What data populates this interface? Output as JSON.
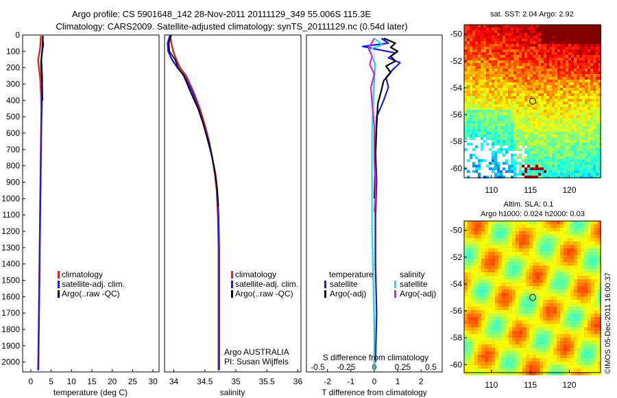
{
  "header": {
    "line1": "Argo profile: CS 5901648_142 28-Nov-2011 20111129_349 55.006S 115.3E",
    "line2": "Climatology: CARS2009. Satellite-adjusted climatology: synTS_20111129.nc (0.54d later)"
  },
  "colors": {
    "climatology": "#e02020",
    "satellite": "#1a1ae0",
    "argo": "#000000",
    "sal_satellite": "#22e0e0",
    "sal_argo": "#e020e0"
  },
  "chart_data": [
    {
      "type": "line",
      "xlabel": "temperature (deg C)",
      "xticks": [
        "0",
        "5",
        "10",
        "15",
        "20",
        "25",
        "30"
      ],
      "xlim": [
        -2,
        31.5
      ],
      "ylim": [
        2060,
        0
      ],
      "yticks": [
        "0",
        "100",
        "200",
        "300",
        "400",
        "500",
        "600",
        "700",
        "800",
        "900",
        "1000",
        "1100",
        "1200",
        "1300",
        "1400",
        "1500",
        "1600",
        "1700",
        "1800",
        "1900",
        "2000"
      ],
      "legend": {
        "entries": [
          "climatology",
          "satellite-adj. clim.",
          "Argo(..raw -QC)"
        ]
      },
      "series": [
        {
          "name": "climatology",
          "color_key": "climatology",
          "x": [
            2.5,
            2.4,
            2.2,
            1.8,
            2.0,
            2.3,
            2.5,
            2.6,
            2.55,
            2.5,
            2.45,
            2.4,
            2.35,
            2.3,
            2.25,
            2.2,
            2.15,
            2.1,
            2.05,
            2.0,
            1.95,
            1.9,
            1.85,
            1.8
          ],
          "y": [
            5,
            50,
            100,
            150,
            200,
            260,
            350,
            450,
            550,
            650,
            750,
            850,
            950,
            1050,
            1150,
            1250,
            1350,
            1450,
            1550,
            1650,
            1750,
            1850,
            1950,
            2050
          ]
        },
        {
          "name": "satellite-adj. clim.",
          "color_key": "satellite",
          "x": [
            3.0,
            2.9,
            2.8,
            2.6,
            2.7,
            2.8,
            2.8,
            2.7,
            2.6,
            2.55,
            2.5,
            2.45,
            2.4,
            2.35,
            2.3,
            2.25,
            2.2,
            2.15,
            2.1,
            2.05,
            2.0,
            1.95,
            1.9,
            1.85
          ],
          "y": [
            5,
            50,
            100,
            150,
            200,
            260,
            350,
            450,
            550,
            650,
            750,
            850,
            950,
            1050,
            1150,
            1250,
            1350,
            1450,
            1550,
            1650,
            1750,
            1850,
            1950,
            2050
          ]
        },
        {
          "name": "Argo(..raw -QC)",
          "color_key": "argo",
          "x": [
            2.9,
            3.1,
            2.7,
            2.5,
            2.6,
            2.8,
            2.9
          ],
          "y": [
            5,
            60,
            120,
            180,
            240,
            300,
            400
          ]
        }
      ]
    },
    {
      "type": "line",
      "xlabel": "salinity",
      "xticks": [
        "34",
        "34.5",
        "35",
        "35.5",
        "36"
      ],
      "xtick_values": [
        34,
        34.5,
        35,
        35.5,
        36
      ],
      "xlim": [
        33.85,
        36.05
      ],
      "ylim": [
        2060,
        0
      ],
      "legend": {
        "entries": [
          "climatology",
          "satellite-adj. clim.",
          "Argo(..raw -QC)"
        ]
      },
      "annotation": [
        "Argo AUSTRALIA",
        "PI: Susan Wijffels"
      ],
      "series": [
        {
          "name": "climatology",
          "color_key": "climatology",
          "x": [
            33.94,
            33.96,
            33.99,
            34.04,
            34.1,
            34.2,
            34.32,
            34.42,
            34.5,
            34.57,
            34.62,
            34.66,
            34.69,
            34.71,
            34.72,
            34.72,
            34.72
          ],
          "y": [
            0,
            50,
            100,
            150,
            200,
            250,
            350,
            450,
            550,
            650,
            750,
            850,
            950,
            1100,
            1300,
            1600,
            2050
          ]
        },
        {
          "name": "satellite-adj. clim.",
          "color_key": "satellite",
          "x": [
            33.94,
            33.9,
            33.91,
            33.97,
            34.06,
            34.17,
            34.3,
            34.4,
            34.48,
            34.56,
            34.62,
            34.67,
            34.7,
            34.72,
            34.73,
            34.73,
            34.73
          ],
          "y": [
            0,
            50,
            100,
            150,
            200,
            250,
            350,
            450,
            550,
            650,
            750,
            850,
            950,
            1100,
            1300,
            1600,
            2050
          ]
        },
        {
          "name": "Argo(..raw -QC)",
          "color_key": "argo",
          "x": [
            33.96,
            33.92,
            33.93,
            34.02,
            34.07,
            34.16,
            34.27,
            34.39,
            34.48,
            34.55,
            34.62,
            34.67,
            34.7,
            34.72
          ],
          "y": [
            0,
            50,
            100,
            150,
            200,
            250,
            350,
            450,
            550,
            650,
            750,
            850,
            950,
            1050
          ]
        }
      ]
    },
    {
      "type": "line",
      "xlabel": "T difference from climatology",
      "xticks": [
        "-2",
        "-1",
        "0",
        "1",
        "2"
      ],
      "xtick_values": [
        -2,
        -1,
        0,
        1,
        2
      ],
      "xlim": [
        -2.9,
        2.9
      ],
      "top_label": "S difference from climatology",
      "sticks": [
        "-0.5",
        "-0.25",
        "0",
        "0.25",
        "0.5"
      ],
      "stick_values": [
        -0.5,
        -0.25,
        0,
        0.25,
        0.5
      ],
      "slim": [
        -0.6,
        0.6
      ],
      "ylim": [
        2060,
        0
      ],
      "legend": {
        "temperature_title": "temperature",
        "salinity_title": "salinity",
        "entries": [
          "satellite",
          "Argo(-adj)",
          "satellite",
          "Argo(-adj)"
        ]
      },
      "series": [
        {
          "name": "satellite",
          "group": "temperature",
          "color_key": "satellite",
          "x": [
            0.3,
            0.6,
            -0.5,
            0.2,
            0.9,
            0.6,
            1.1,
            0.8,
            0.5,
            0.6,
            0.4,
            0.1,
            0.05,
            0.1,
            0.05,
            0.05,
            0.1,
            0.05
          ],
          "y": [
            20,
            50,
            70,
            90,
            110,
            140,
            170,
            210,
            260,
            320,
            400,
            500,
            700,
            900,
            1100,
            1400,
            1700,
            2000
          ]
        },
        {
          "name": "Argo(-adj)",
          "group": "temperature",
          "color_key": "argo",
          "x": [
            0.4,
            0.9,
            0.7,
            1.0,
            0.7,
            0.9,
            0.5,
            0.7,
            0.4,
            0.3,
            0.15,
            0.1,
            0.05,
            0.0
          ],
          "y": [
            20,
            50,
            75,
            100,
            130,
            160,
            190,
            230,
            280,
            340,
            420,
            550,
            750,
            1000
          ]
        },
        {
          "name": "satellite",
          "group": "salinity",
          "color_key": "sal_satellite",
          "x": [
            0.0,
            0.07,
            -0.05,
            -0.02,
            0.01,
            0.0,
            -0.01,
            -0.02,
            -0.02,
            -0.02,
            -0.01,
            0.0,
            0.0
          ],
          "y": [
            20,
            60,
            90,
            130,
            180,
            260,
            380,
            600,
            900,
            1200,
            1500,
            1800,
            2050
          ]
        },
        {
          "name": "Argo(-adj)",
          "group": "salinity",
          "color_key": "sal_argo",
          "x": [
            0.0,
            -0.05,
            -0.02,
            -0.04,
            0.0,
            -0.03,
            -0.02,
            0.0,
            0.0,
            0.01,
            0.01,
            0.0
          ],
          "y": [
            20,
            80,
            130,
            180,
            240,
            320,
            420,
            560,
            760,
            900,
            1000,
            1080
          ]
        }
      ]
    },
    {
      "type": "heatmap",
      "title": "sat. SST: 2.04  Argo: 2.92",
      "xticks": [
        "110",
        "115",
        "120"
      ],
      "xtick_values": [
        110,
        115,
        120
      ],
      "yticks": [
        "-50",
        "-52",
        "-54",
        "-56",
        "-58",
        "-60"
      ],
      "ytick_values": [
        -50,
        -52,
        -54,
        -56,
        -58,
        -60
      ],
      "xlim": [
        106.5,
        124
      ],
      "ylim": [
        -60.7,
        -49.3
      ],
      "marker": {
        "lon": 115.3,
        "lat": -55.0
      }
    },
    {
      "type": "heatmap",
      "title_lines": [
        "Altim. SLA: 0.1",
        "Argo h1000: 0.024  h2000: 0.03"
      ],
      "xticks": [
        "110",
        "115",
        "120"
      ],
      "xtick_values": [
        110,
        115,
        120
      ],
      "yticks": [
        "-50",
        "-52",
        "-54",
        "-56",
        "-58",
        "-60"
      ],
      "ytick_values": [
        -50,
        -52,
        -54,
        -56,
        -58,
        -60
      ],
      "xlim": [
        106.5,
        124
      ],
      "ylim": [
        -60.6,
        -49.3
      ],
      "marker": {
        "lon": 115.3,
        "lat": -55.0
      }
    }
  ],
  "footer": {
    "credit": "©IMOS 05-Dec-2011 16:00:37"
  }
}
